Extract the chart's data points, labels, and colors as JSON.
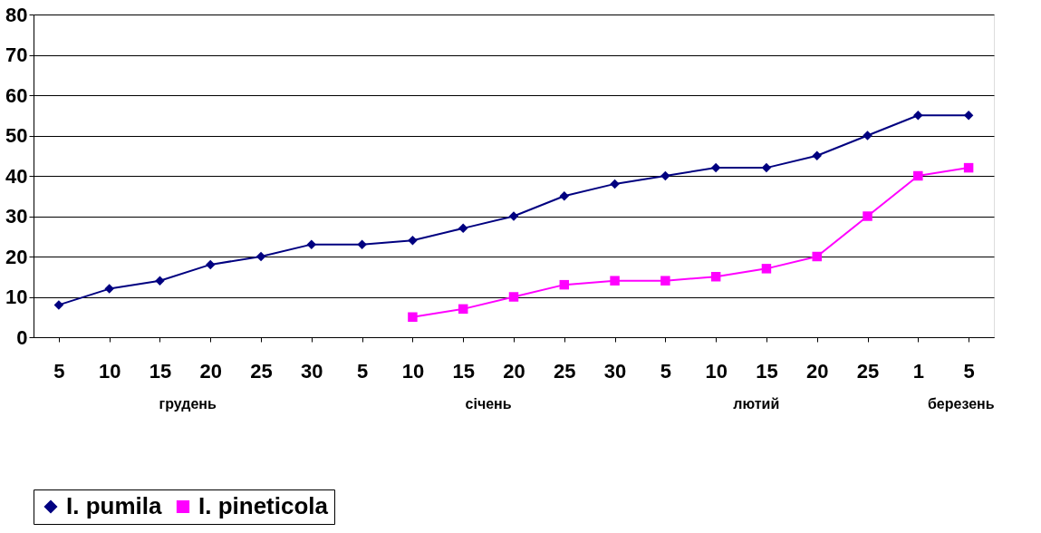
{
  "chart_data": {
    "type": "line",
    "categories": [
      "5",
      "10",
      "15",
      "20",
      "25",
      "30",
      "5",
      "10",
      "15",
      "20",
      "25",
      "30",
      "5",
      "10",
      "15",
      "20",
      "25",
      "1",
      "5"
    ],
    "series": [
      {
        "name": "I. pumila",
        "color": "#000080",
        "marker": "diamond",
        "values": [
          8,
          12,
          14,
          18,
          20,
          23,
          23,
          24,
          27,
          30,
          35,
          38,
          40,
          42,
          42,
          45,
          50,
          55,
          55
        ]
      },
      {
        "name": "I. pineticola",
        "color": "#ff00ff",
        "marker": "square",
        "values": [
          null,
          null,
          null,
          null,
          null,
          null,
          null,
          5,
          7,
          10,
          13,
          14,
          14,
          15,
          17,
          20,
          30,
          40,
          42
        ]
      }
    ],
    "annotations": [
      "грудень",
      "січень",
      "лютий",
      "березень"
    ],
    "ylim": [
      0,
      80
    ],
    "yticks": [
      0,
      10,
      20,
      30,
      40,
      50,
      60,
      70,
      80
    ],
    "grid": "y",
    "legend": "bottom",
    "line_style": "solid"
  }
}
